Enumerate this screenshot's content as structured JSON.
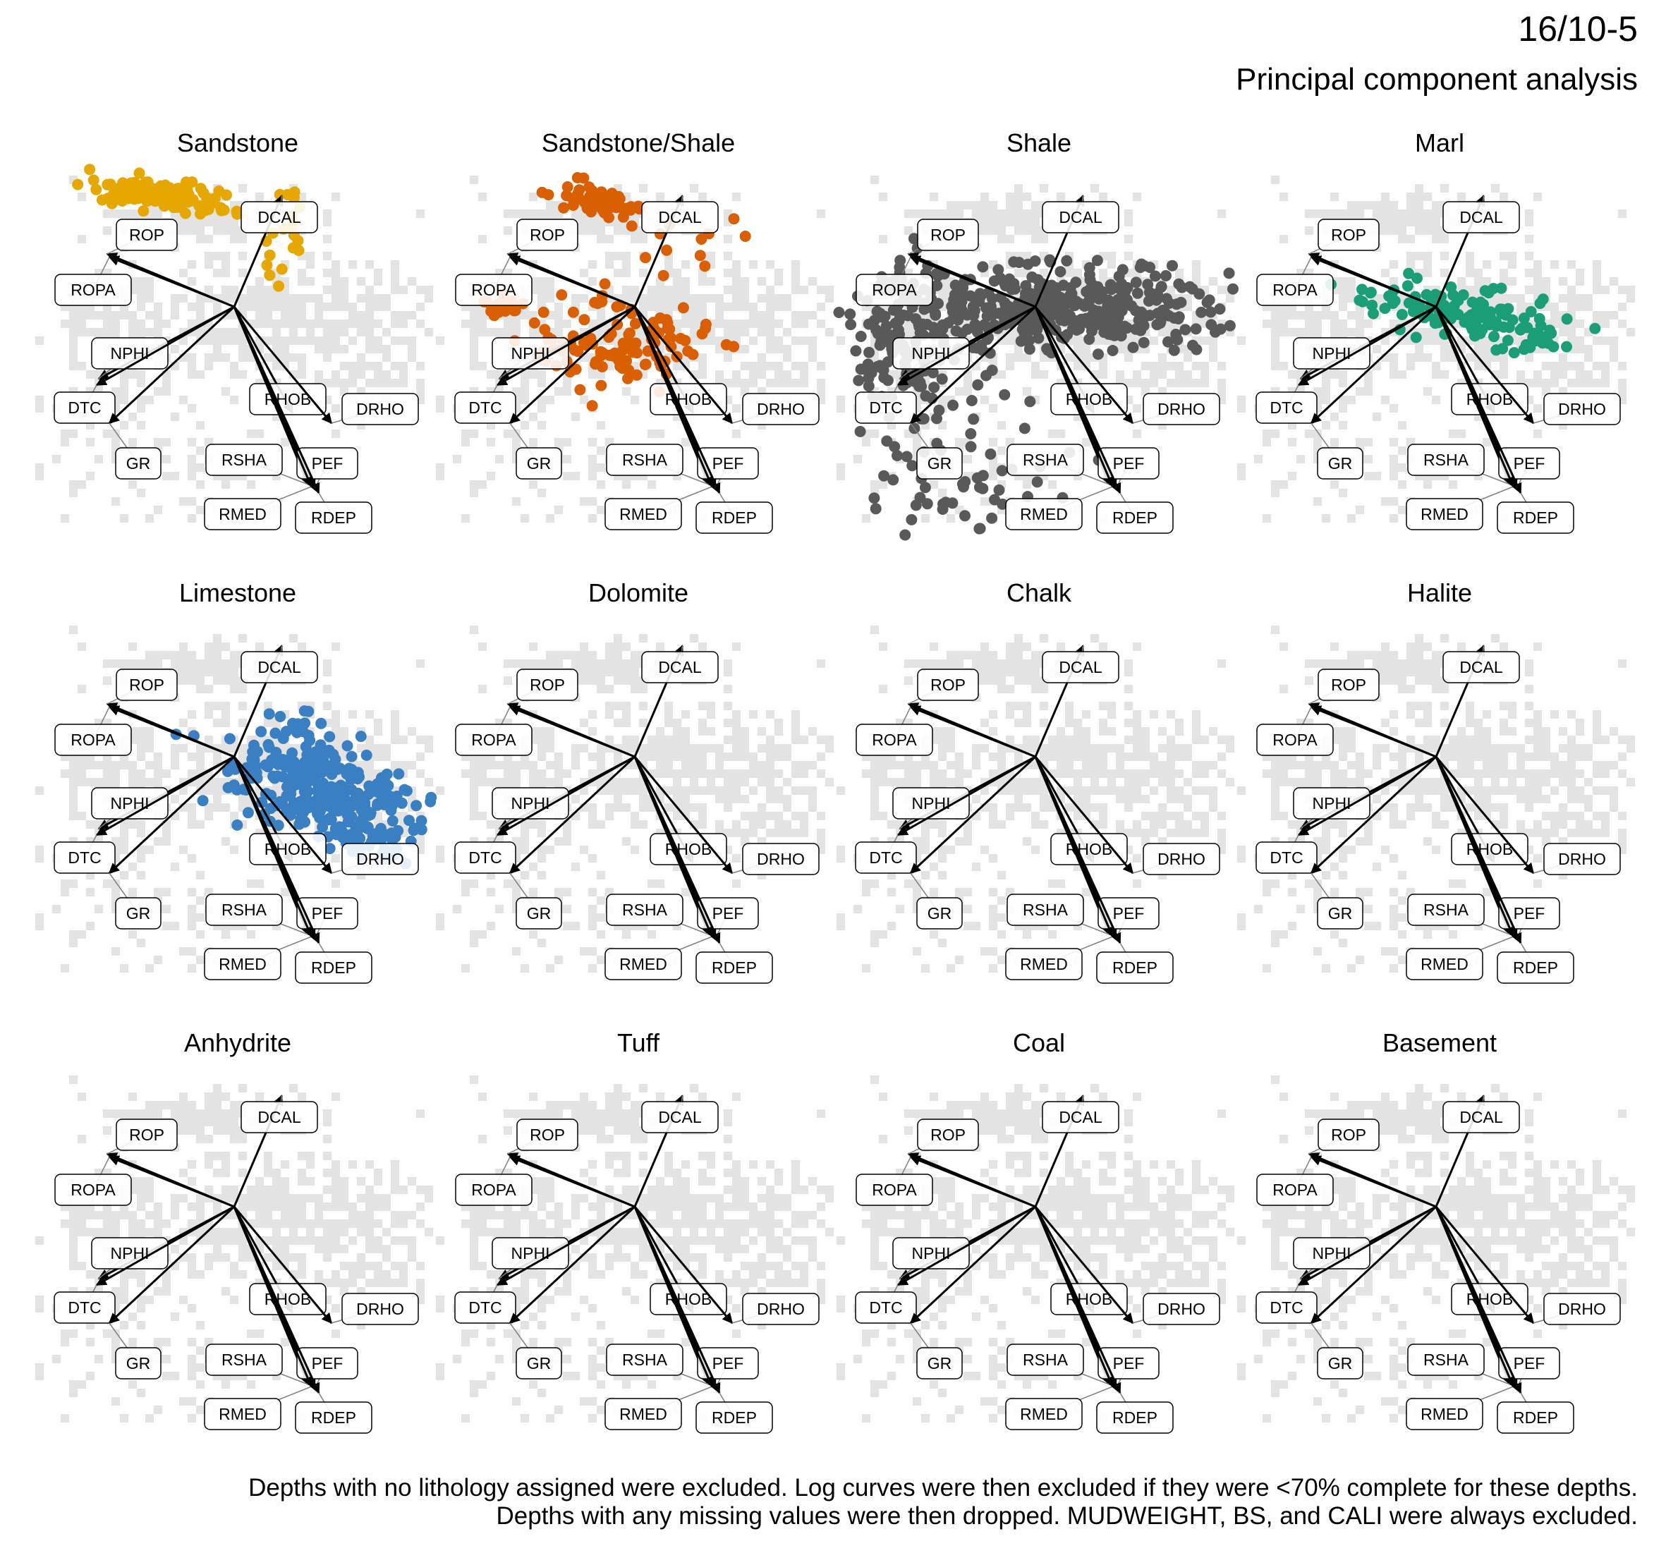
{
  "header": {
    "title": "16/10-5",
    "subtitle": "Principal component analysis"
  },
  "caption": {
    "line1": "Depths with no lithology assigned were excluded. Log curves were then excluded if they were <70% complete for these depths.",
    "line2": "Depths with any missing values were then dropped. MUDWEIGHT, BS, and CALI were always excluded."
  },
  "colors": {
    "background_points": "#e3e3e3",
    "arrow": "#000000",
    "Sandstone": "#e6a800",
    "Sandstone/Shale": "#d95f02",
    "Shale": "#595959",
    "Marl": "#1b9e77",
    "Limestone": "#3a7fc1"
  },
  "chart_data": {
    "type": "scatter",
    "subtype": "pca-biplot-facets",
    "facet_grid": {
      "rows": 3,
      "cols": 4
    },
    "facets": [
      {
        "name": "Sandstone",
        "has_points": true
      },
      {
        "name": "Sandstone/Shale",
        "has_points": true
      },
      {
        "name": "Shale",
        "has_points": true
      },
      {
        "name": "Marl",
        "has_points": true
      },
      {
        "name": "Limestone",
        "has_points": true
      },
      {
        "name": "Dolomite",
        "has_points": false
      },
      {
        "name": "Chalk",
        "has_points": false
      },
      {
        "name": "Halite",
        "has_points": false
      },
      {
        "name": "Anhydrite",
        "has_points": false
      },
      {
        "name": "Tuff",
        "has_points": false
      },
      {
        "name": "Coal",
        "has_points": false
      },
      {
        "name": "Basement",
        "has_points": false
      }
    ],
    "loadings": [
      {
        "name": "DCAL",
        "pc1": 0.45,
        "pc2": 1.05
      },
      {
        "name": "ROP",
        "pc1": -1.2,
        "pc2": 0.5
      },
      {
        "name": "ROPA",
        "pc1": -1.18,
        "pc2": 0.47
      },
      {
        "name": "NPHI",
        "pc1": -1.28,
        "pc2": -0.68
      },
      {
        "name": "DTC",
        "pc1": -1.3,
        "pc2": -0.74
      },
      {
        "name": "GR",
        "pc1": -1.18,
        "pc2": -1.1
      },
      {
        "name": "RHOB",
        "pc1": 0.55,
        "pc2": -1.0
      },
      {
        "name": "DRHO",
        "pc1": 0.92,
        "pc2": -1.1
      },
      {
        "name": "RSHA",
        "pc1": 0.7,
        "pc2": -1.68
      },
      {
        "name": "PEF",
        "pc1": 0.76,
        "pc2": -1.72
      },
      {
        "name": "RMED",
        "pc1": 0.73,
        "pc2": -1.7
      },
      {
        "name": "RDEP",
        "pc1": 0.8,
        "pc2": -1.76
      }
    ],
    "clusters": {
      "Sandstone": [
        {
          "cx": -0.7,
          "cy": 1.05,
          "sx": 0.35,
          "sy": 0.06,
          "n": 150,
          "tilt": -0.15
        },
        {
          "cx": 0.45,
          "cy": 0.6,
          "sx": 0.12,
          "sy": 0.28,
          "n": 20,
          "tilt": 0
        }
      ],
      "Sandstone/Shale": [
        {
          "cx": -0.35,
          "cy": 1.0,
          "sx": 0.18,
          "sy": 0.07,
          "n": 50,
          "tilt": -0.3
        },
        {
          "cx": -0.15,
          "cy": -0.35,
          "sx": 0.4,
          "sy": 0.2,
          "n": 110,
          "tilt": 0
        },
        {
          "cx": -1.25,
          "cy": 0.0,
          "sx": 0.1,
          "sy": 0.05,
          "n": 22,
          "tilt": 0
        },
        {
          "cx": 0.45,
          "cy": 0.5,
          "sx": 0.3,
          "sy": 0.3,
          "n": 14,
          "tilt": 0
        }
      ],
      "Shale": [
        {
          "cx": 0.3,
          "cy": 0.0,
          "sx": 0.85,
          "sy": 0.2,
          "n": 360,
          "tilt": 0
        },
        {
          "cx": -1.2,
          "cy": -0.3,
          "sx": 0.25,
          "sy": 0.35,
          "n": 120,
          "tilt": 0
        },
        {
          "cx": -0.8,
          "cy": -1.35,
          "sx": 0.5,
          "sy": 0.5,
          "n": 60,
          "tilt": -0.5
        },
        {
          "cx": -0.6,
          "cy": -1.9,
          "sx": 0.15,
          "sy": 0.2,
          "n": 8,
          "tilt": 0
        }
      ],
      "Marl": [
        {
          "cx": 0.35,
          "cy": -0.1,
          "sx": 0.5,
          "sy": 0.12,
          "n": 130,
          "tilt": -0.2
        }
      ],
      "Limestone": [
        {
          "cx": 0.8,
          "cy": -0.3,
          "sx": 0.45,
          "sy": 0.2,
          "n": 260,
          "tilt": -0.25
        },
        {
          "cx": 1.2,
          "cy": -0.75,
          "sx": 0.2,
          "sy": 0.12,
          "n": 40,
          "tilt": -0.5
        },
        {
          "cx": 0.55,
          "cy": 0.3,
          "sx": 0.12,
          "sy": 0.08,
          "n": 12,
          "tilt": 0
        }
      ]
    }
  }
}
